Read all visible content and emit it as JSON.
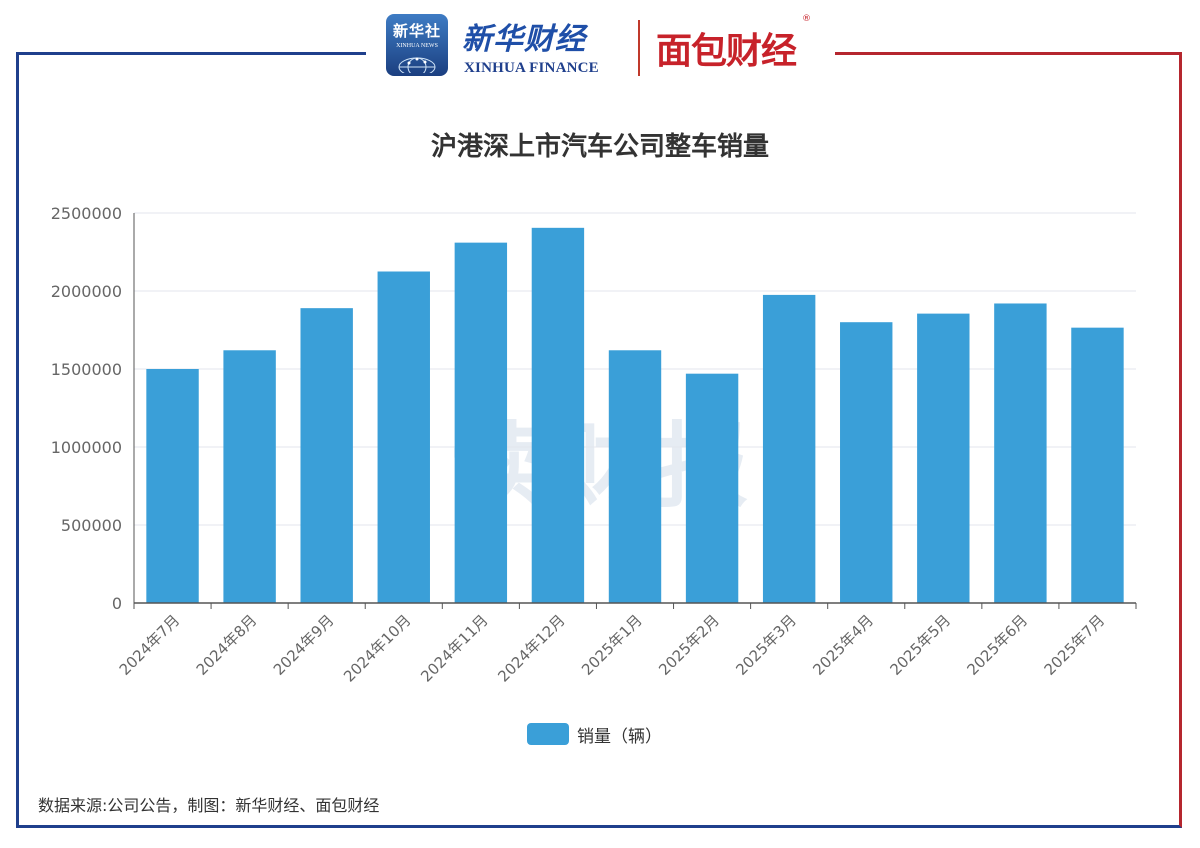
{
  "header": {
    "xinhua_agency_cn": "新华社",
    "xinhua_agency_en": "XINHUA NEWS",
    "xinhua_finance_cn": "新华财经",
    "xinhua_finance_en": "XINHUA FINANCE",
    "mianbao_logo": "面包财经",
    "registered_mark": "®"
  },
  "watermark": "读财报",
  "source": "数据来源:公司公告，制图：新华财经、面包财经",
  "colors": {
    "bar": "#3a9fd8",
    "frame_left": "#1f3f8c",
    "frame_right": "#b5262e"
  },
  "chart_data": {
    "type": "bar",
    "title": "沪港深上市汽车公司整车销量",
    "categories": [
      "2024年7月",
      "2024年8月",
      "2024年9月",
      "2024年10月",
      "2024年11月",
      "2024年12月",
      "2025年1月",
      "2025年2月",
      "2025年3月",
      "2025年4月",
      "2025年5月",
      "2025年6月",
      "2025年7月"
    ],
    "series": [
      {
        "name": "销量（辆）",
        "values": [
          1500000,
          1620000,
          1890000,
          2125000,
          2310000,
          2405000,
          1620000,
          1470000,
          1975000,
          1800000,
          1855000,
          1920000,
          1765000
        ]
      }
    ],
    "ylim": [
      0,
      2500000
    ],
    "yticks": [
      "0",
      "500000",
      "1000000",
      "1500000",
      "2000000",
      "2500000"
    ],
    "grid": true,
    "legend_position": "bottom"
  }
}
